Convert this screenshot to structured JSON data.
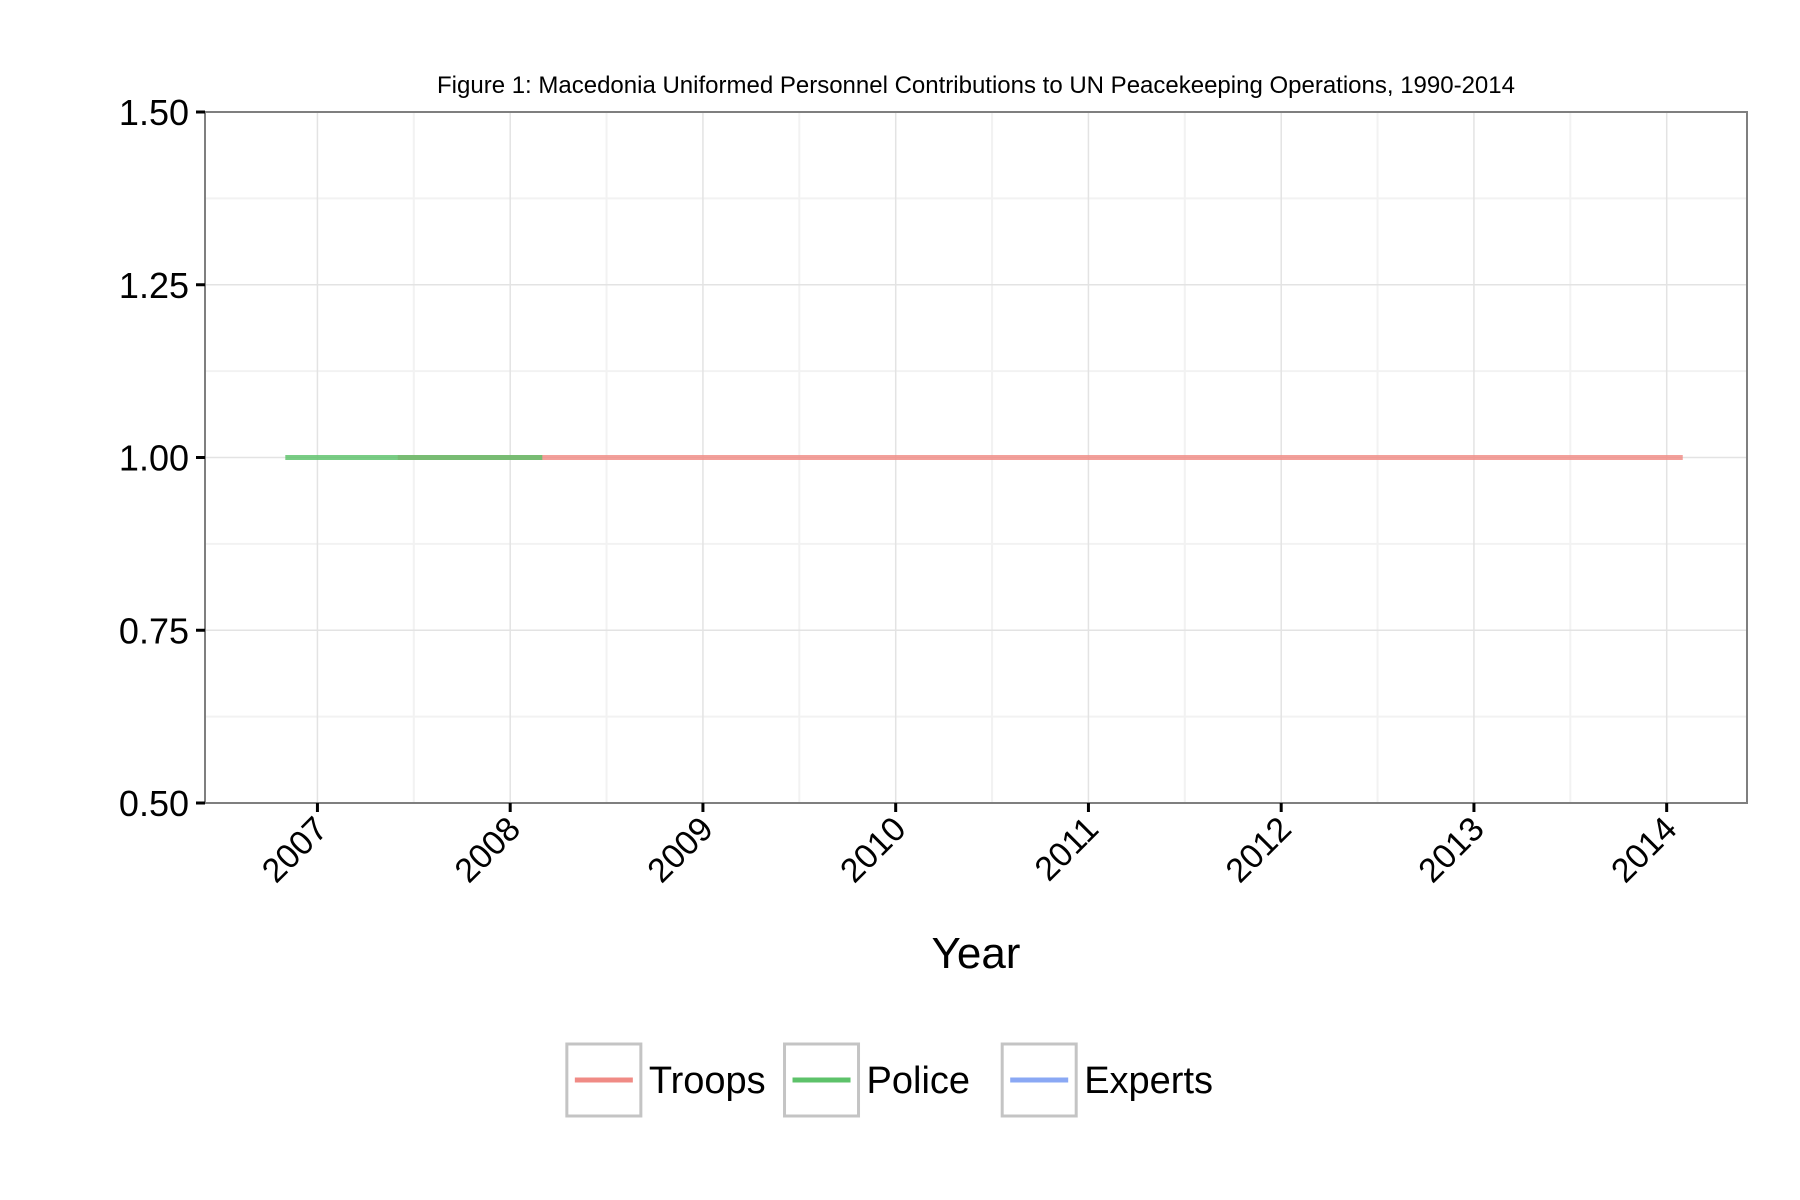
{
  "chart_data": {
    "type": "line",
    "title": "Figure 1: Macedonia Uniformed Personnel Contributions to UN Peacekeeping Operations, 1990-2014",
    "xlabel": "Year",
    "ylabel": "",
    "xlim": [
      "2006-06",
      "2014-06"
    ],
    "ylim": [
      0.5,
      1.5
    ],
    "x_ticks": [
      "2007",
      "2008",
      "2009",
      "2010",
      "2011",
      "2012",
      "2013",
      "2014"
    ],
    "y_ticks": [
      "0.50",
      "0.75",
      "1.00",
      "1.25",
      "1.50"
    ],
    "grid": true,
    "legend_position": "bottom",
    "series": [
      {
        "name": "Troops",
        "color": "#f08b85",
        "points": [
          {
            "x": "2007-06",
            "y": 1
          },
          {
            "x": "2014-02",
            "y": 1
          }
        ]
      },
      {
        "name": "Police",
        "color": "#5dc26a",
        "points": [
          {
            "x": "2006-11",
            "y": 1
          },
          {
            "x": "2008-03",
            "y": 1
          }
        ]
      },
      {
        "name": "Experts",
        "color": "#8aa8f4",
        "points": []
      }
    ]
  }
}
